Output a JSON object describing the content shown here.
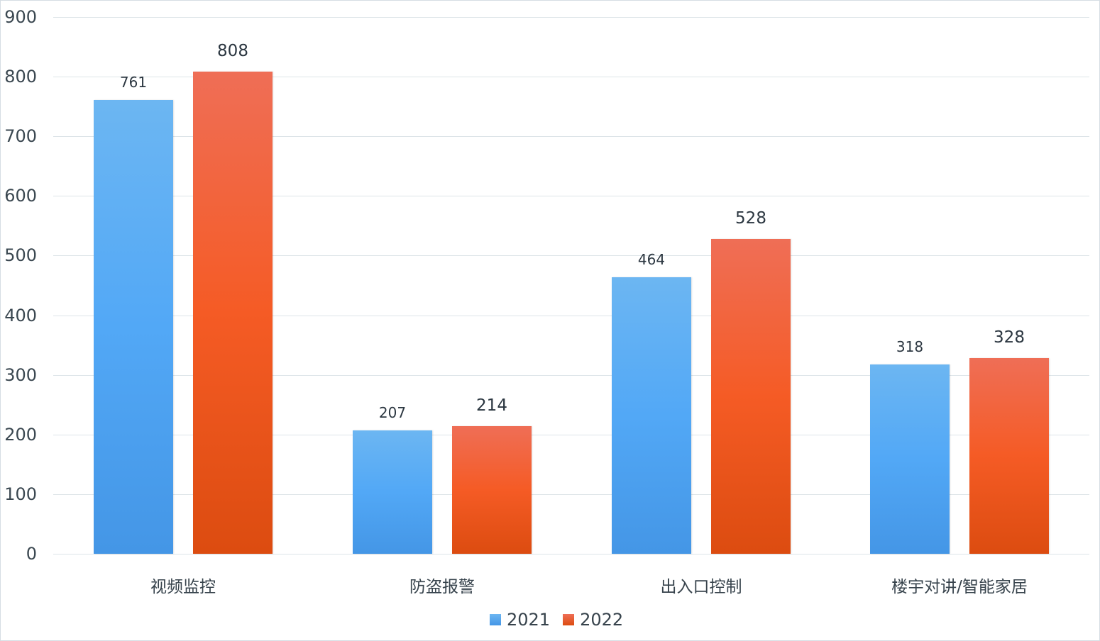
{
  "chart_data": {
    "type": "bar",
    "title": "",
    "xlabel": "",
    "ylabel": "",
    "categories": [
      "视频监控",
      "防盗报警",
      "出入口控制",
      "楼宇对讲/智能家居"
    ],
    "series": [
      {
        "name": "2021",
        "color": "#52a8f6",
        "values": [
          761,
          207,
          464,
          318
        ]
      },
      {
        "name": "2022",
        "color": "#f55b25",
        "values": [
          808,
          214,
          528,
          328
        ]
      }
    ],
    "ylim": [
      0,
      900
    ],
    "yticks": [
      "0",
      "100",
      "200",
      "300",
      "400",
      "500",
      "600",
      "700",
      "800",
      "900"
    ],
    "grid": true,
    "legend_position": "bottom",
    "data_labels": true
  },
  "labels": {
    "bars": [
      [
        "761",
        "808"
      ],
      [
        "207",
        "214"
      ],
      [
        "464",
        "528"
      ],
      [
        "318",
        "328"
      ]
    ]
  }
}
